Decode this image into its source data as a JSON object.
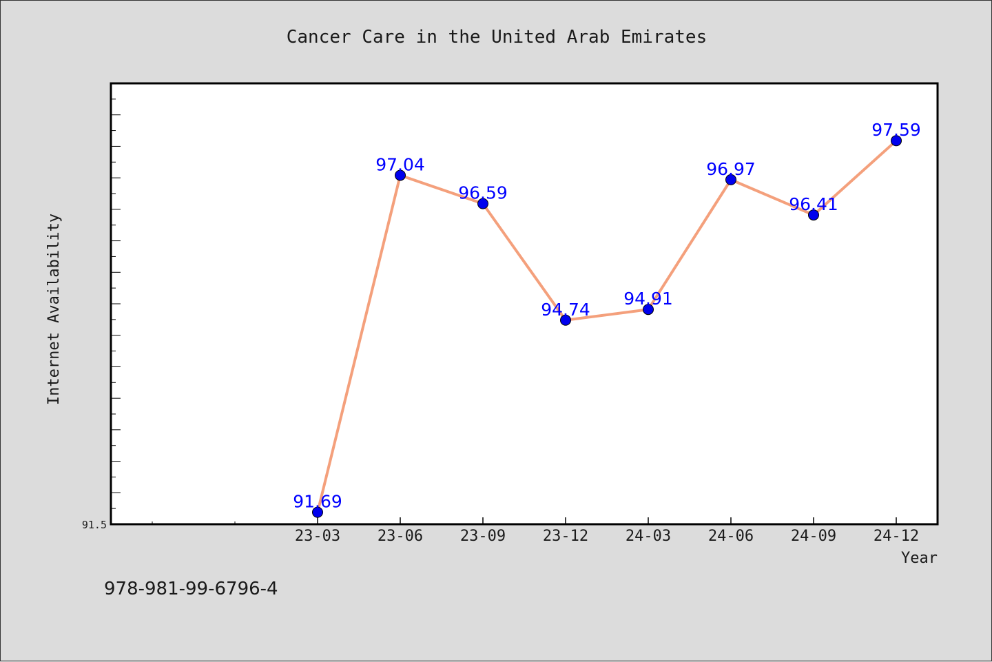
{
  "chart_data": {
    "type": "line",
    "title": "Cancer Care in the United Arab Emirates",
    "xlabel": "Year",
    "ylabel": "Internet Availability",
    "categories": [
      "23-03",
      "23-06",
      "23-09",
      "23-12",
      "24-03",
      "24-06",
      "24-09",
      "24-12"
    ],
    "series": [
      {
        "values": [
          91.69,
          97.04,
          96.59,
          94.74,
          94.91,
          96.97,
          96.41,
          97.59
        ],
        "labels": [
          "91.69",
          "97.04",
          "96.59",
          "94.74",
          "94.91",
          "96.97",
          "96.41",
          "97.59"
        ],
        "line_color": "#f4a07c",
        "marker_color": "#0000ee",
        "label_color": "#0000ff"
      }
    ],
    "ylim": [
      91.5,
      98.5
    ],
    "yticks_labeled": [
      "91.5"
    ],
    "grid": false,
    "legend": "none"
  },
  "footer": {
    "code": "978-981-99-6796-4"
  }
}
